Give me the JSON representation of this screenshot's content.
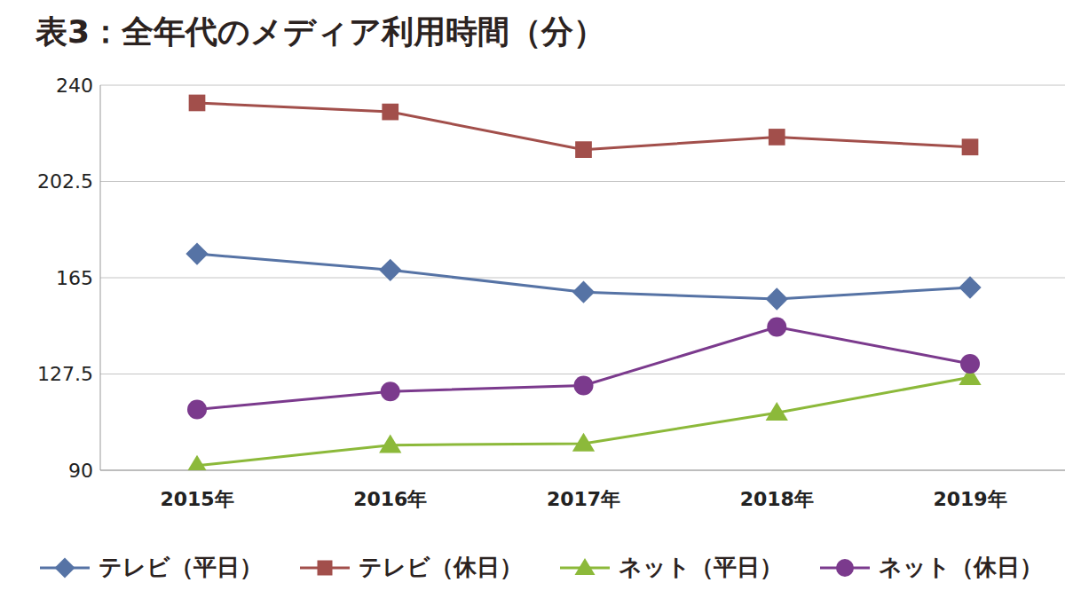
{
  "chart_data": {
    "type": "line",
    "title": "表3：全年代のメディア利用時間（分）",
    "categories": [
      "2015年",
      "2016年",
      "2017年",
      "2018年",
      "2019年"
    ],
    "series": [
      {
        "name": "テレビ（平日）",
        "color": "#5673a5",
        "marker": "diamond",
        "values": [
          174.3,
          168.0,
          159.4,
          156.7,
          161.2
        ]
      },
      {
        "name": "テレビ（休日）",
        "color": "#a24f4b",
        "marker": "square",
        "values": [
          233.1,
          229.6,
          214.9,
          219.8,
          215.9
        ]
      },
      {
        "name": "ネット（平日）",
        "color": "#8cb93a",
        "marker": "triangle",
        "values": [
          91.8,
          99.8,
          100.4,
          112.4,
          126.2
        ]
      },
      {
        "name": "ネット（休日）",
        "color": "#7b3a8d",
        "marker": "circle",
        "values": [
          113.7,
          120.7,
          123.0,
          145.8,
          131.5
        ]
      }
    ],
    "ylim": [
      90,
      240
    ],
    "yticks": [
      90,
      127.5,
      165,
      202.5,
      240
    ],
    "grid": true,
    "legend": "bottom"
  }
}
